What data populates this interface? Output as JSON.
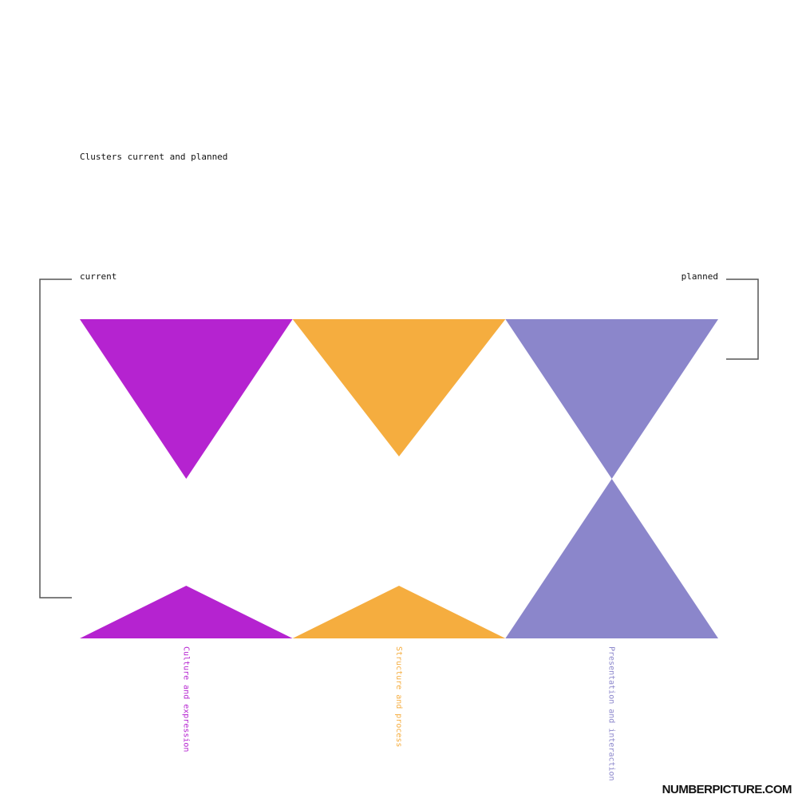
{
  "chart_data": {
    "type": "bar",
    "title": "Clusters current and planned",
    "legend": {
      "current_label": "current",
      "planned_label": "planned",
      "current_placement": "top-left",
      "planned_placement": "top-right"
    },
    "categories": [
      "Culture and expression",
      "Structure and process",
      "Presentation and interaction"
    ],
    "colors": [
      "#b523d0",
      "#f5ad3f",
      "#8b86cb"
    ],
    "series": [
      {
        "name": "current",
        "values": [
          100,
          86,
          100
        ]
      },
      {
        "name": "planned",
        "values": [
          33,
          33,
          100
        ]
      }
    ],
    "ylim": [
      0,
      100
    ],
    "grid": false
  },
  "brand": "NUMBERPICTURE.COM"
}
